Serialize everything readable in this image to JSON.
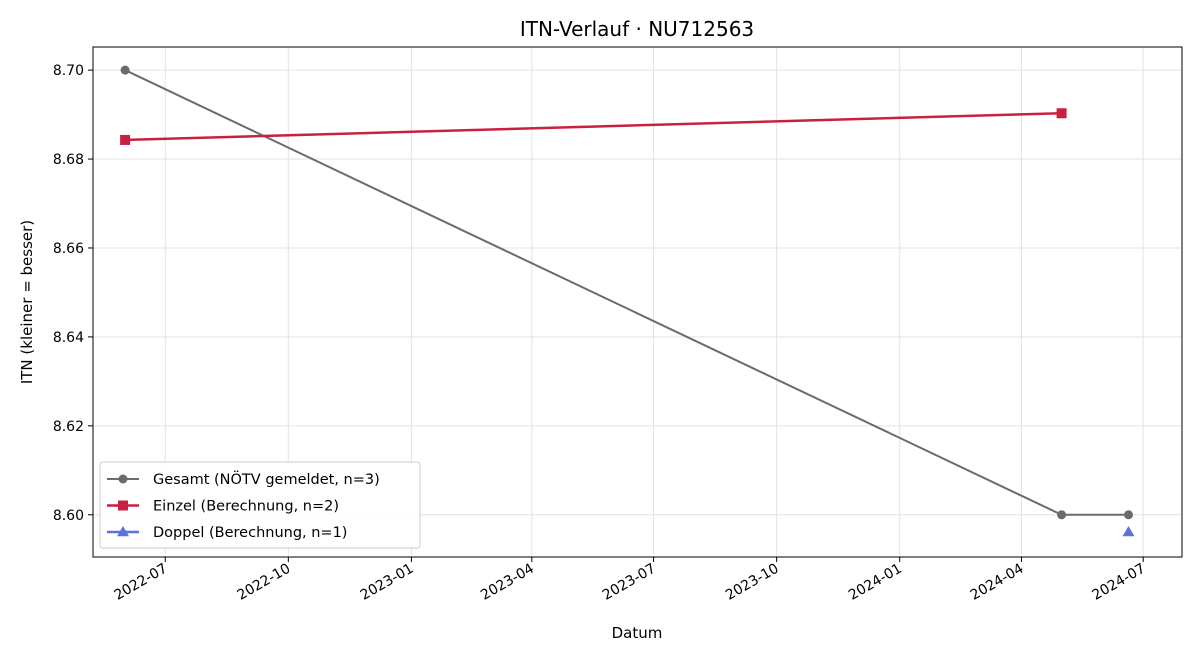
{
  "chart_data": {
    "type": "line",
    "title": "ITN-Verlauf · NU712563",
    "xlabel": "Datum",
    "ylabel": "ITN  (kleiner = besser)",
    "x_axis_type": "date",
    "xlim": [
      "2022-05-08",
      "2024-07-30"
    ],
    "ylim": [
      8.5905,
      8.7052
    ],
    "x_ticks": [
      "2022-07",
      "2022-10",
      "2023-01",
      "2023-04",
      "2023-07",
      "2023-10",
      "2024-01",
      "2024-04",
      "2024-07"
    ],
    "y_ticks": [
      8.6,
      8.62,
      8.64,
      8.66,
      8.68,
      8.7
    ],
    "y_tick_labels": [
      "8.60",
      "8.62",
      "8.64",
      "8.66",
      "8.68",
      "8.70"
    ],
    "grid": true,
    "legend_position": "lower-left",
    "series": [
      {
        "name": "Gesamt (NÖTV gemeldet, n=3)",
        "color": "#6b6b6b",
        "marker": "circle",
        "x": [
          "2022-06-01",
          "2024-05-01",
          "2024-06-20"
        ],
        "y": [
          8.7,
          8.6,
          8.6
        ]
      },
      {
        "name": "Einzel (Berechnung, n=2)",
        "color": "#c8203f",
        "marker": "square",
        "x": [
          "2022-06-01",
          "2024-05-01"
        ],
        "y": [
          8.6843,
          8.6903
        ]
      },
      {
        "name": "Doppel (Berechnung, n=1)",
        "color": "#5a72e0",
        "marker": "triangle",
        "x": [
          "2024-06-20"
        ],
        "y": [
          8.5961
        ]
      }
    ]
  }
}
